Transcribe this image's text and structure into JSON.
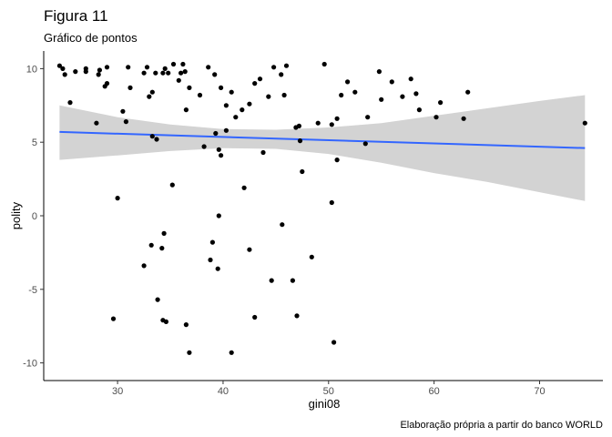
{
  "chart_data": {
    "type": "scatter",
    "title": "Figura 11",
    "subtitle": "Gráfico de pontos",
    "xlabel": "gini08",
    "ylabel": "polity",
    "caption": "Elaboração própria a partir do banco WORLD",
    "xlim": [
      23,
      76
    ],
    "ylim": [
      -11.2,
      11.2
    ],
    "x_ticks": [
      "30",
      "40",
      "50",
      "60",
      "70"
    ],
    "y_ticks": [
      "-10",
      "-5",
      "0",
      "5",
      "10"
    ],
    "x_tick_values": [
      30,
      40,
      50,
      60,
      70
    ],
    "y_tick_values": [
      -10,
      -5,
      0,
      5,
      10
    ],
    "grid": false,
    "legend": "none",
    "colors": {
      "points": "#000000",
      "trend_line": "#3366ff",
      "confidence_band": "#d3d3d3",
      "axis": "#000000"
    },
    "trend_line": {
      "x": [
        24.5,
        74.3
      ],
      "y": [
        5.7,
        4.6
      ]
    },
    "confidence_band": {
      "x": [
        24.5,
        30,
        35,
        40,
        45,
        50,
        55,
        60,
        65,
        70,
        74.3
      ],
      "upper": [
        7.5,
        6.7,
        6.2,
        5.9,
        5.85,
        6.0,
        6.3,
        6.8,
        7.3,
        7.8,
        8.2
      ],
      "lower": [
        3.8,
        4.1,
        4.4,
        4.6,
        4.55,
        4.2,
        3.6,
        2.9,
        2.3,
        1.6,
        1.0
      ]
    },
    "points": [
      [
        24.5,
        10.2
      ],
      [
        24.8,
        10.0
      ],
      [
        25.0,
        9.6
      ],
      [
        25.5,
        7.7
      ],
      [
        26.0,
        9.8
      ],
      [
        27.0,
        10.0
      ],
      [
        27.0,
        9.8
      ],
      [
        28.2,
        9.6
      ],
      [
        28.3,
        9.9
      ],
      [
        28.0,
        6.3
      ],
      [
        29.0,
        10.1
      ],
      [
        28.8,
        8.8
      ],
      [
        29.0,
        9.0
      ],
      [
        30.5,
        7.1
      ],
      [
        30.8,
        6.4
      ],
      [
        31.0,
        10.1
      ],
      [
        31.2,
        8.7
      ],
      [
        32.5,
        9.7
      ],
      [
        32.8,
        10.1
      ],
      [
        33.0,
        8.1
      ],
      [
        33.3,
        8.4
      ],
      [
        33.6,
        9.7
      ],
      [
        34.3,
        9.7
      ],
      [
        34.5,
        10.0
      ],
      [
        34.8,
        9.7
      ],
      [
        35.3,
        10.3
      ],
      [
        35.8,
        9.2
      ],
      [
        36.2,
        10.3
      ],
      [
        36.0,
        9.7
      ],
      [
        36.4,
        9.8
      ],
      [
        36.8,
        8.7
      ],
      [
        36.5,
        7.2
      ],
      [
        37.8,
        8.2
      ],
      [
        38.6,
        10.1
      ],
      [
        39.2,
        9.6
      ],
      [
        39.8,
        8.7
      ],
      [
        40.3,
        7.5
      ],
      [
        40.8,
        8.4
      ],
      [
        41.2,
        6.7
      ],
      [
        41.8,
        7.2
      ],
      [
        42.5,
        7.6
      ],
      [
        43.0,
        9.0
      ],
      [
        43.5,
        9.3
      ],
      [
        44.3,
        8.1
      ],
      [
        44.8,
        10.1
      ],
      [
        45.5,
        9.6
      ],
      [
        45.8,
        8.2
      ],
      [
        46.0,
        10.2
      ],
      [
        46.9,
        6.0
      ],
      [
        47.2,
        6.1
      ],
      [
        47.3,
        5.1
      ],
      [
        49.0,
        6.3
      ],
      [
        49.6,
        10.3
      ],
      [
        50.3,
        6.2
      ],
      [
        50.8,
        6.6
      ],
      [
        51.2,
        8.2
      ],
      [
        51.8,
        9.1
      ],
      [
        52.5,
        8.4
      ],
      [
        53.5,
        4.9
      ],
      [
        53.7,
        6.7
      ],
      [
        54.8,
        9.8
      ],
      [
        55.0,
        7.9
      ],
      [
        56.0,
        9.1
      ],
      [
        57.0,
        8.1
      ],
      [
        57.8,
        9.3
      ],
      [
        58.3,
        8.3
      ],
      [
        58.6,
        7.2
      ],
      [
        60.2,
        6.7
      ],
      [
        60.6,
        7.7
      ],
      [
        62.8,
        6.6
      ],
      [
        63.2,
        8.4
      ],
      [
        74.3,
        6.3
      ],
      [
        30.0,
        1.2
      ],
      [
        33.3,
        5.4
      ],
      [
        33.7,
        5.2
      ],
      [
        35.2,
        2.1
      ],
      [
        38.2,
        4.7
      ],
      [
        39.3,
        5.6
      ],
      [
        39.6,
        4.5
      ],
      [
        39.8,
        4.1
      ],
      [
        40.3,
        5.8
      ],
      [
        42.0,
        1.9
      ],
      [
        43.8,
        4.3
      ],
      [
        47.5,
        3.0
      ],
      [
        50.3,
        0.9
      ],
      [
        50.8,
        3.8
      ],
      [
        29.6,
        -7.0
      ],
      [
        32.5,
        -3.4
      ],
      [
        33.2,
        -2.0
      ],
      [
        33.8,
        -5.7
      ],
      [
        34.2,
        -2.2
      ],
      [
        34.3,
        -7.1
      ],
      [
        34.4,
        -1.2
      ],
      [
        34.6,
        -7.2
      ],
      [
        36.5,
        -7.4
      ],
      [
        36.8,
        -9.3
      ],
      [
        38.8,
        -3.0
      ],
      [
        39.0,
        -1.8
      ],
      [
        39.5,
        -3.6
      ],
      [
        39.6,
        0.0
      ],
      [
        40.8,
        -9.3
      ],
      [
        42.5,
        -2.3
      ],
      [
        43.0,
        -6.9
      ],
      [
        44.6,
        -4.4
      ],
      [
        45.6,
        -0.6
      ],
      [
        46.6,
        -4.4
      ],
      [
        47.0,
        -6.8
      ],
      [
        48.4,
        -2.8
      ],
      [
        50.5,
        -8.6
      ]
    ]
  }
}
